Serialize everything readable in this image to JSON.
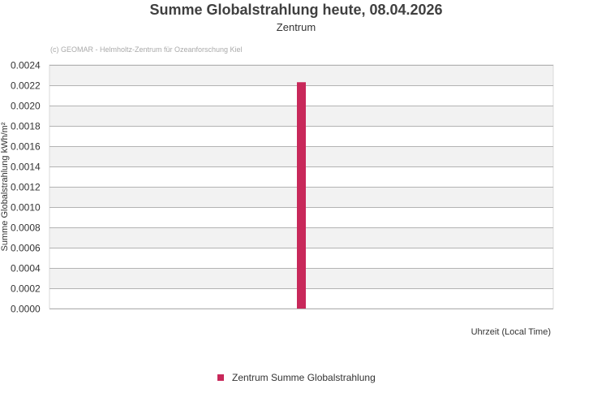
{
  "chart_data": {
    "type": "bar",
    "title": "Summe Globalstrahlung heute, 08.04.2026",
    "subtitle": "Zentrum",
    "credit": "(c) GEOMAR - Helmholtz-Zentrum für Ozeanforschung Kiel",
    "xlabel": "Uhrzeit (Local Time)",
    "ylabel": "Summe Globalstrahlung kWh/m²",
    "ylim": [
      0,
      0.0024
    ],
    "yticks": [
      "0.0000",
      "0.0002",
      "0.0004",
      "0.0006",
      "0.0008",
      "0.0010",
      "0.0012",
      "0.0014",
      "0.0016",
      "0.0018",
      "0.0020",
      "0.0022",
      "0.0024"
    ],
    "grid": true,
    "alternating_bands": true,
    "legend_position": "bottom-center",
    "series": [
      {
        "name": "Zentrum Summe Globalstrahlung",
        "color": "#c8285a",
        "values": [
          0.00223
        ]
      }
    ]
  }
}
